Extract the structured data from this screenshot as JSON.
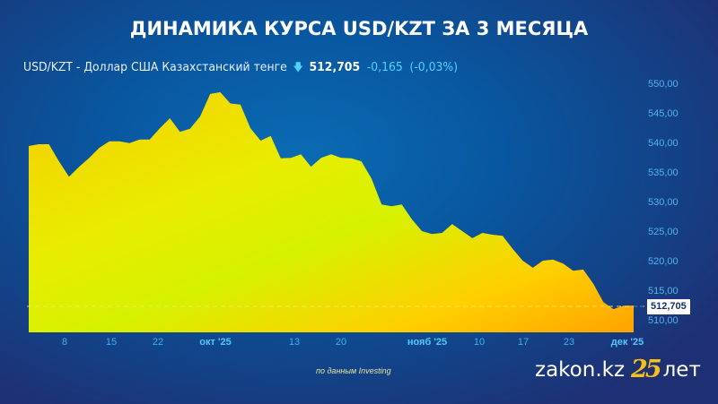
{
  "header": {
    "title": "ДИНАМИКА КУРСА USD/KZT ЗА 3 МЕСЯЦА",
    "pair": "USD/KZT - Доллар США Казахстанский тенге",
    "direction_icon": "arrow-down-icon",
    "price": "512,705",
    "change": "-0,165",
    "change_pct": "(-0,03%)"
  },
  "axis": {
    "y_ticks": [
      "550,00",
      "545,00",
      "540,00",
      "535,00",
      "530,00",
      "525,00",
      "520,00",
      "515,00",
      "510,00"
    ],
    "x_ticks": [
      "8",
      "15",
      "22",
      "окт '25",
      "13",
      "20",
      "нояб '25",
      "10",
      "17",
      "23",
      "дек '25"
    ],
    "current_price_label": "512,705"
  },
  "footer": {
    "source": "по данным Investing",
    "logo_brand": "zakon.kz",
    "logo_number": "25",
    "logo_suffix": "лет"
  },
  "colors": {
    "background": "#0857a0",
    "area_top": "#f5d000",
    "area_mid": "#d8f000",
    "area_bottom": "#ffaa00",
    "axis_text": "#4fb6ee",
    "accent_change": "#4fd3ff",
    "logo_gold": "#f2c21b"
  },
  "chart_data": {
    "type": "area",
    "title": "ДИНАМИКА КУРСА USD/KZT ЗА 3 МЕСЯЦА",
    "subtitle": "USD/KZT - Доллар США Казахстанский тенге 512,705 -0,165 (-0,03%)",
    "xlabel": "",
    "ylabel": "",
    "ylim": [
      508,
      551
    ],
    "y_ticks": [
      510,
      515,
      520,
      525,
      530,
      535,
      540,
      545,
      550
    ],
    "x_tick_labels": [
      "8",
      "15",
      "22",
      "окт '25",
      "13",
      "20",
      "нояб '25",
      "10",
      "17",
      "23",
      "дек '25"
    ],
    "grid": false,
    "legend": null,
    "current_value": 512.705,
    "x": [
      0,
      1,
      2,
      3,
      4,
      5,
      6,
      7,
      8,
      9,
      10,
      11,
      12,
      13,
      14,
      15,
      16,
      17,
      18,
      19,
      20,
      21,
      22,
      23,
      24,
      25,
      26,
      27,
      28,
      29,
      30,
      31,
      32,
      33,
      34,
      35,
      36,
      37,
      38,
      39,
      40,
      41,
      42,
      43,
      44,
      45,
      46,
      47,
      48,
      49,
      50,
      51,
      52,
      53,
      54,
      55,
      56,
      57,
      58,
      59,
      60
    ],
    "values": [
      539.7,
      540.0,
      540.0,
      537.1,
      534.5,
      536.2,
      537.7,
      539.4,
      540.5,
      540.5,
      540.2,
      540.8,
      540.8,
      542.7,
      544.4,
      542.1,
      542.6,
      544.7,
      548.5,
      548.8,
      546.9,
      546.7,
      542.7,
      540.6,
      541.4,
      537.6,
      537.7,
      538.3,
      536.2,
      537.7,
      538.3,
      537.7,
      537.6,
      537.1,
      534.2,
      529.8,
      529.5,
      529.8,
      527.3,
      525.3,
      524.8,
      525.0,
      526.5,
      525.3,
      524.1,
      525.0,
      524.7,
      524.5,
      522.3,
      520.3,
      519.1,
      520.3,
      520.5,
      519.8,
      518.6,
      518.8,
      516.4,
      513.3,
      512.1,
      512.7,
      512.705
    ]
  }
}
